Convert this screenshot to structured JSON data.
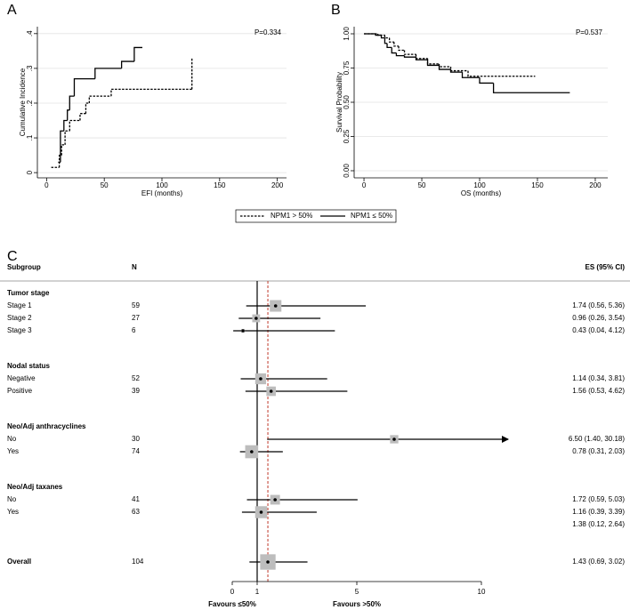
{
  "chart_data": [
    {
      "type": "line",
      "panel_label": "A",
      "annotation": "P=0.334",
      "xlabel": "EFI (months)",
      "ylabel": "Cumulative Incidence",
      "xlim": [
        -8,
        208
      ],
      "ylim": [
        -0.015,
        0.42
      ],
      "xticks": [
        0,
        50,
        100,
        150,
        200
      ],
      "yticks": [
        0,
        {
          "value": 0.1,
          "label": ".1"
        },
        {
          "value": 0.2,
          "label": ".2"
        },
        {
          "value": 0.3,
          "label": ".3"
        },
        {
          "value": 0.4,
          "label": ".4"
        }
      ],
      "grid": true,
      "step": true,
      "series": [
        {
          "name": "NPM1 > 50%",
          "color": "#000000",
          "line_style": "dashed",
          "x": [
            4,
            11,
            13,
            16,
            20,
            29,
            34,
            37,
            56,
            126
          ],
          "values": [
            0.015,
            0.05,
            0.08,
            0.12,
            0.15,
            0.17,
            0.2,
            0.22,
            0.24,
            0.33
          ]
        },
        {
          "name": "NPM1 ≤ 50%",
          "color": "#000000",
          "line_style": "solid",
          "x": [
            10,
            12,
            15,
            18,
            20,
            24,
            42,
            65,
            76,
            83
          ],
          "values": [
            0.03,
            0.12,
            0.15,
            0.18,
            0.22,
            0.27,
            0.3,
            0.32,
            0.36,
            0.36
          ]
        }
      ]
    },
    {
      "type": "line",
      "panel_label": "B",
      "annotation": "P=0.537",
      "xlabel": "OS (months)",
      "ylabel": "Survival Probability",
      "xlim": [
        -8.5,
        210.8
      ],
      "ylim": [
        -0.052,
        1.052
      ],
      "xticks": [
        0,
        50,
        100,
        150,
        200
      ],
      "yticks": [
        {
          "value": 0,
          "label": "0.00"
        },
        {
          "value": 0.25,
          "label": "0.25"
        },
        {
          "value": 0.5,
          "label": "0.50"
        },
        {
          "value": 0.75,
          "label": "0.75"
        },
        {
          "value": 1,
          "label": "1.00"
        }
      ],
      "grid": true,
      "step": true,
      "series": [
        {
          "color": "#000000",
          "line_style": "dashed",
          "x": [
            0,
            12,
            18,
            22,
            26,
            30,
            35,
            45,
            55,
            65,
            75,
            90,
            148
          ],
          "values": [
            1,
            0.99,
            0.97,
            0.94,
            0.91,
            0.88,
            0.85,
            0.82,
            0.78,
            0.76,
            0.73,
            0.69,
            0.69
          ]
        },
        {
          "color": "#000000",
          "line_style": "solid",
          "x": [
            0,
            10,
            15,
            18,
            20,
            24,
            28,
            35,
            45,
            55,
            65,
            75,
            85,
            100,
            112,
            178
          ],
          "values": [
            1,
            0.99,
            0.97,
            0.93,
            0.9,
            0.86,
            0.84,
            0.83,
            0.81,
            0.77,
            0.74,
            0.72,
            0.68,
            0.64,
            0.57,
            0.57
          ]
        }
      ]
    },
    {
      "type": "forest",
      "panel_label": "C",
      "columns": {
        "subgroup": "Subgroup",
        "n": "N",
        "es": "ES (95% CI)"
      },
      "xlim": [
        -0.5,
        11.5
      ],
      "xticks": [
        0,
        1,
        5,
        10
      ],
      "ref_line": 1,
      "favours": [
        "Favours ≤50%",
        "Favours >50%"
      ],
      "marker_color": "#bdbdbd",
      "overall_line_color": "#c0392b",
      "groups": [
        {
          "name": "Tumor stage",
          "rows": [
            {
              "label": "Stage 1",
              "n": 59,
              "es": 1.74,
              "lo": 0.56,
              "hi": 5.36,
              "es_label": "1.74 (0.56, 5.36)"
            },
            {
              "label": "Stage 2",
              "n": 27,
              "es": 0.96,
              "lo": 0.26,
              "hi": 3.54,
              "es_label": "0.96 (0.26, 3.54)"
            },
            {
              "label": "Stage 3",
              "n": 6,
              "es": 0.43,
              "lo": 0.04,
              "hi": 4.12,
              "es_label": "0.43 (0.04, 4.12)"
            }
          ]
        },
        {
          "name": "Nodal status",
          "rows": [
            {
              "label": "Negative",
              "n": 52,
              "es": 1.14,
              "lo": 0.34,
              "hi": 3.81,
              "es_label": "1.14 (0.34, 3.81)"
            },
            {
              "label": "Positive",
              "n": 39,
              "es": 1.56,
              "lo": 0.53,
              "hi": 4.62,
              "es_label": "1.56 (0.53, 4.62)"
            }
          ]
        },
        {
          "name": "Neo/Adj anthracyclines",
          "rows": [
            {
              "label": "No",
              "n": 30,
              "es": 6.5,
              "lo": 1.4,
              "hi": 30.18,
              "es_label": "6.50 (1.40, 30.18)"
            },
            {
              "label": "Yes",
              "n": 74,
              "es": 0.78,
              "lo": 0.31,
              "hi": 2.03,
              "es_label": "0.78 (0.31, 2.03)"
            }
          ]
        },
        {
          "name": "Neo/Adj taxanes",
          "rows": [
            {
              "label": "No",
              "n": 41,
              "es": 1.72,
              "lo": 0.59,
              "hi": 5.03,
              "es_label": "1.72 (0.59, 5.03)"
            },
            {
              "label": "Yes",
              "n": 63,
              "es": 1.16,
              "lo": 0.39,
              "hi": 3.39,
              "es_label": "1.16 (0.39, 3.39)"
            },
            {
              "es_label": "1.38 (0.12, 2.64)"
            }
          ]
        }
      ],
      "overall": {
        "label": "Overall",
        "n": 104,
        "es": 1.43,
        "lo": 0.69,
        "hi": 3.02,
        "es_label": "1.43 (0.69, 3.02)"
      }
    }
  ]
}
